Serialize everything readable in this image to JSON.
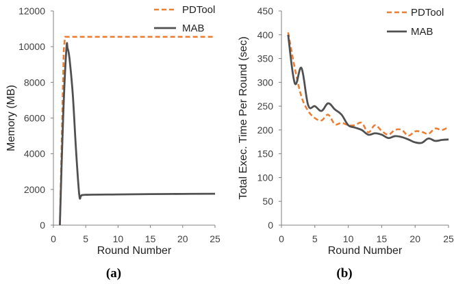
{
  "chart_data": [
    {
      "type": "line",
      "panel_label": "(a)",
      "xlabel": "Round Number",
      "ylabel": "Memory (MB)",
      "xlim": [
        0,
        25
      ],
      "ylim": [
        0,
        12000
      ],
      "xticks": [
        0,
        5,
        10,
        15,
        20,
        25
      ],
      "yticks": [
        0,
        2000,
        4000,
        6000,
        8000,
        10000,
        12000
      ],
      "grid": false,
      "legend_position": "top-right",
      "series": [
        {
          "name": "PDTool",
          "color": "#ED7D31",
          "dash": "dashed",
          "x": [
            1,
            1.6,
            1.8,
            2,
            25
          ],
          "y": [
            0,
            9800,
            10550,
            10550,
            10550
          ]
        },
        {
          "name": "MAB",
          "color": "#505050",
          "dash": "solid",
          "x": [
            1,
            1.5,
            2,
            2.2,
            2.5,
            3,
            3.5,
            4,
            4.3,
            5,
            10,
            15,
            20,
            25
          ],
          "y": [
            0,
            6000,
            9850,
            9900,
            9300,
            7300,
            4200,
            1700,
            1650,
            1700,
            1720,
            1740,
            1750,
            1760
          ]
        }
      ]
    },
    {
      "type": "line",
      "panel_label": "(b)",
      "xlabel": "Round Number",
      "ylabel": "Total Exec. Time Per Round (sec)",
      "xlim": [
        0,
        25
      ],
      "ylim": [
        0,
        450
      ],
      "xticks": [
        0,
        5,
        10,
        15,
        20,
        25
      ],
      "yticks": [
        0,
        50,
        100,
        150,
        200,
        250,
        300,
        350,
        400,
        450
      ],
      "grid": false,
      "legend_position": "top-right",
      "series": [
        {
          "name": "PDTool",
          "color": "#ED7D31",
          "dash": "dashed",
          "x": [
            1,
            2,
            3,
            4,
            5,
            6,
            7,
            8,
            9,
            10,
            11,
            12,
            13,
            14,
            15,
            16,
            17,
            18,
            19,
            20,
            21,
            22,
            23,
            24,
            25
          ],
          "y": [
            405,
            330,
            270,
            240,
            225,
            220,
            232,
            212,
            215,
            210,
            210,
            215,
            195,
            210,
            198,
            190,
            200,
            200,
            188,
            197,
            196,
            192,
            203,
            200,
            206
          ]
        },
        {
          "name": "MAB",
          "color": "#505050",
          "dash": "solid",
          "x": [
            1,
            2,
            3,
            4,
            5,
            6,
            7,
            8,
            9,
            10,
            11,
            12,
            13,
            14,
            15,
            16,
            17,
            18,
            19,
            20,
            21,
            22,
            23,
            24,
            25
          ],
          "y": [
            400,
            298,
            330,
            252,
            250,
            240,
            256,
            243,
            232,
            210,
            205,
            200,
            190,
            193,
            190,
            183,
            187,
            185,
            180,
            174,
            173,
            182,
            177,
            179,
            180
          ]
        }
      ]
    }
  ]
}
